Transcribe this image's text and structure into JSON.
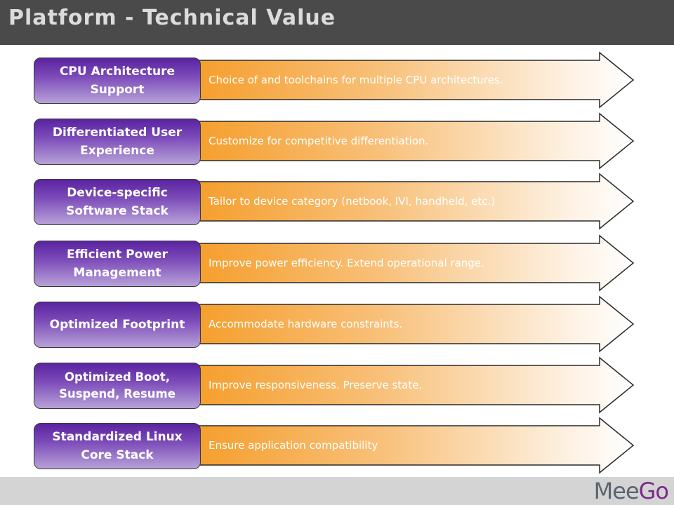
{
  "slide": {
    "title": "Platform - Technical Value"
  },
  "colors": {
    "title_bar": "#4a4a4a",
    "pill_top": "#5a23a0",
    "arrow_dark": "#f59a23"
  },
  "rows": [
    {
      "label": "CPU Architecture Support",
      "text": "Choice of and toolchains for multiple CPU architectures."
    },
    {
      "label": "Differentiated User Experience",
      "text": "Customize for competitive differentiation."
    },
    {
      "label": "Device-specific Software Stack",
      "text": "Tailor to device category (netbook, IVI, handheld, etc.)"
    },
    {
      "label": "Efficient Power Management",
      "text": "Improve power efficiency. Extend operational range."
    },
    {
      "label": "Optimized Footprint",
      "text": "Accommodate hardware constraints."
    },
    {
      "label": "Optimized Boot, Suspend, Resume",
      "text": "Improve responsiveness. Preserve state."
    },
    {
      "label": "Standardized Linux Core Stack",
      "text": "Ensure application compatibility"
    }
  ],
  "footer": {
    "logo_part1": "Mee",
    "logo_part2": "Go"
  }
}
